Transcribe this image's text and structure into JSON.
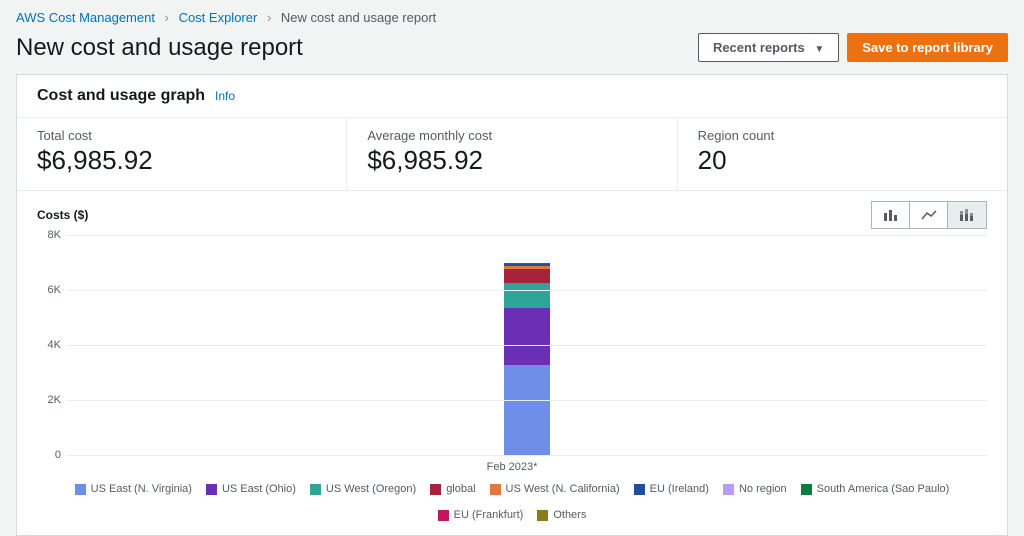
{
  "breadcrumb": {
    "items": [
      {
        "label": "AWS Cost Management",
        "link": true
      },
      {
        "label": "Cost Explorer",
        "link": true
      },
      {
        "label": "New cost and usage report",
        "link": false
      }
    ]
  },
  "header": {
    "title": "New cost and usage report",
    "recent_btn": "Recent reports",
    "save_btn": "Save to report library"
  },
  "panel": {
    "title": "Cost and usage graph",
    "info_label": "Info"
  },
  "stats": {
    "total_cost": {
      "label": "Total cost",
      "value": "$6,985.92"
    },
    "avg_cost": {
      "label": "Average monthly cost",
      "value": "$6,985.92"
    },
    "region_count": {
      "label": "Region count",
      "value": "20"
    }
  },
  "chart": {
    "y_title": "Costs ($)",
    "type": "stacked-bar",
    "ylim": [
      0,
      8000
    ],
    "yticks": [
      {
        "v": 0,
        "label": "0"
      },
      {
        "v": 2000,
        "label": "2K"
      },
      {
        "v": 4000,
        "label": "4K"
      },
      {
        "v": 6000,
        "label": "6K"
      },
      {
        "v": 8000,
        "label": "8K"
      }
    ],
    "grid_color": "#eaeded",
    "background_color": "#ffffff",
    "categories": [
      "Feb 2023*"
    ],
    "series": [
      {
        "name": "US East (N. Virginia)",
        "color": "#6f8ee8",
        "values": [
          3280
        ]
      },
      {
        "name": "US East (Ohio)",
        "color": "#6a2fb5",
        "values": [
          2050
        ]
      },
      {
        "name": "US West (Oregon)",
        "color": "#2ea597",
        "values": [
          910
        ]
      },
      {
        "name": "global",
        "color": "#a6243b",
        "values": [
          520
        ]
      },
      {
        "name": "US West (N. California)",
        "color": "#e07941",
        "values": [
          120
        ]
      },
      {
        "name": "EU (Ireland)",
        "color": "#1f4f9b",
        "values": [
          60
        ]
      },
      {
        "name": "No region",
        "color": "#b99bf8",
        "values": [
          20
        ]
      },
      {
        "name": "South America (Sao Paulo)",
        "color": "#0d7d3d",
        "values": [
          15
        ]
      },
      {
        "name": "EU (Frankfurt)",
        "color": "#c2185b",
        "values": [
          5
        ]
      },
      {
        "name": "Others",
        "color": "#8a7b1f",
        "values": [
          5
        ]
      }
    ]
  }
}
